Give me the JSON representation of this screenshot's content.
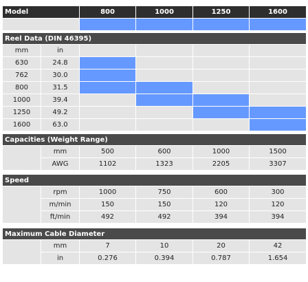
{
  "header": {
    "model_label": "Model",
    "models": [
      "800",
      "1000",
      "1250",
      "1600"
    ]
  },
  "reel": {
    "title": "Reel Data (DIN 46395)",
    "col_mm": "mm",
    "col_in": "in",
    "rows": [
      {
        "mm": "630",
        "in": "24.8",
        "fits": [
          true,
          false,
          false,
          false
        ]
      },
      {
        "mm": "762",
        "in": "30.0",
        "fits": [
          true,
          false,
          false,
          false
        ]
      },
      {
        "mm": "800",
        "in": "31.5",
        "fits": [
          true,
          true,
          false,
          false
        ]
      },
      {
        "mm": "1000",
        "in": "39.4",
        "fits": [
          false,
          true,
          true,
          false
        ]
      },
      {
        "mm": "1250",
        "in": "49.2",
        "fits": [
          false,
          false,
          true,
          true
        ]
      },
      {
        "mm": "1600",
        "in": "63.0",
        "fits": [
          false,
          false,
          false,
          true
        ]
      }
    ]
  },
  "capacities": {
    "title": "Capacities (Weight Range)",
    "rows": [
      {
        "unit": "mm",
        "values": [
          "500",
          "600",
          "1000",
          "1500"
        ]
      },
      {
        "unit": "AWG",
        "values": [
          "1102",
          "1323",
          "2205",
          "3307"
        ]
      }
    ]
  },
  "speed": {
    "title": "Speed",
    "rows": [
      {
        "unit": "rpm",
        "values": [
          "1000",
          "750",
          "600",
          "300"
        ]
      },
      {
        "unit": "m/min",
        "values": [
          "150",
          "150",
          "120",
          "120"
        ]
      },
      {
        "unit": "ft/min",
        "values": [
          "492",
          "492",
          "394",
          "394"
        ]
      }
    ]
  },
  "cable": {
    "title": "Maximum Cable Diameter",
    "rows": [
      {
        "unit": "mm",
        "values": [
          "7",
          "10",
          "20",
          "42"
        ]
      },
      {
        "unit": "in",
        "values": [
          "0.276",
          "0.394",
          "0.787",
          "1.654"
        ]
      }
    ]
  },
  "colors": {
    "header_bg": "#2e2e2e",
    "section_bg": "#4a4a4a",
    "cell_bg": "#e4e4e4",
    "highlight": "#6699ff"
  }
}
